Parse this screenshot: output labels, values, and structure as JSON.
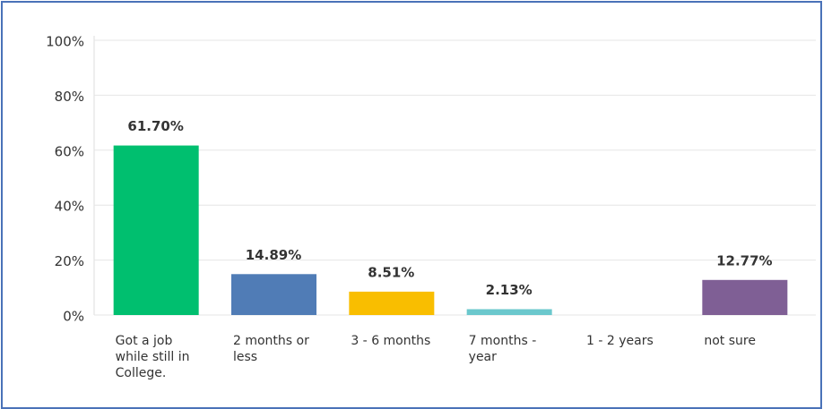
{
  "chart_data": {
    "type": "bar",
    "categories": [
      "Got a job while still in College.",
      "2 months or less",
      "3 - 6 months",
      "7 months - year",
      "1 - 2 years",
      "not sure"
    ],
    "values": [
      61.7,
      14.89,
      8.51,
      2.13,
      0,
      12.77
    ],
    "value_labels": [
      "61.70%",
      "14.89%",
      "8.51%",
      "2.13%",
      null,
      "12.77%"
    ],
    "colors": [
      "#00bf6f",
      "#507cb6",
      "#f9be00",
      "#6bc8cd",
      "#7d7d7d",
      "#7f5f95"
    ],
    "ylim": [
      0,
      100
    ],
    "yticks": [
      {
        "value": 0,
        "label": "0%"
      },
      {
        "value": 20,
        "label": "20%"
      },
      {
        "value": 40,
        "label": "40%"
      },
      {
        "value": 60,
        "label": "60%"
      },
      {
        "value": 80,
        "label": "80%"
      },
      {
        "value": 100,
        "label": "100%"
      }
    ],
    "grid": true
  }
}
